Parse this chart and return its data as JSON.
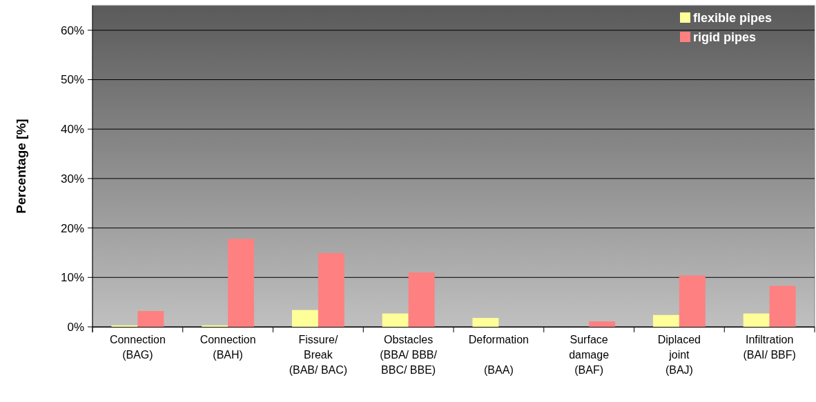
{
  "chart_data": {
    "type": "bar",
    "ylabel": "Percentage [%]",
    "categories": [
      "Connection\n(BAG)",
      "Connection\n(BAH)",
      "Fissure/\nBreak\n(BAB/ BAC)",
      "Obstacles\n(BBA/ BBB/\nBBC/ BBE)",
      "Deformation\n\n(BAA)",
      "Surface\ndamage\n(BAF)",
      "Diplaced\njoint\n(BAJ)",
      "Infiltration\n(BAI/ BBF)"
    ],
    "series": [
      {
        "name": "flexible pipes",
        "color": "#ffff99",
        "values": [
          0.3,
          0.3,
          3.4,
          2.7,
          1.8,
          0,
          2.4,
          2.7
        ]
      },
      {
        "name": "rigid pipes",
        "color": "#ff8080",
        "values": [
          3.2,
          17.8,
          14.9,
          11.0,
          0,
          1.1,
          10.4,
          8.3
        ]
      }
    ],
    "ylim": [
      0,
      65
    ],
    "yticks": [
      {
        "value": 0,
        "label": "0%"
      },
      {
        "value": 10,
        "label": "10%"
      },
      {
        "value": 20,
        "label": "20%"
      },
      {
        "value": 30,
        "label": "30%"
      },
      {
        "value": 40,
        "label": "40%"
      },
      {
        "value": 50,
        "label": "50%"
      },
      {
        "value": 60,
        "label": "60%"
      }
    ],
    "grid": "y",
    "legend": "top right"
  }
}
